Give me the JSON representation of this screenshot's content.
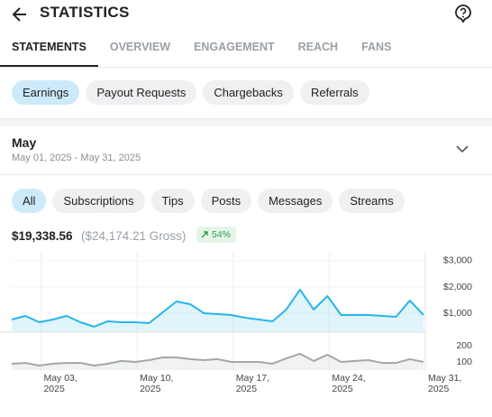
{
  "header": {
    "title": "STATISTICS"
  },
  "tabs": [
    "STATEMENTS",
    "OVERVIEW",
    "ENGAGEMENT",
    "REACH",
    "FANS"
  ],
  "active_tab": 0,
  "filters": [
    "Earnings",
    "Payout Requests",
    "Chargebacks",
    "Referrals"
  ],
  "active_filter": 0,
  "period": {
    "name": "May",
    "range": "May 01, 2025 - May 31, 2025"
  },
  "types": [
    "All",
    "Subscriptions",
    "Tips",
    "Posts",
    "Messages",
    "Streams"
  ],
  "active_type": 0,
  "summary": {
    "net": "$19,338.56",
    "gross": "($24,174.21 Gross)",
    "change": "54%"
  },
  "chart_data": [
    {
      "type": "area",
      "categories": [
        null,
        null,
        "May 03, 2025",
        null,
        null,
        null,
        null,
        null,
        null,
        "May 10, 2025",
        null,
        null,
        null,
        null,
        null,
        null,
        "May 17, 2025",
        null,
        null,
        null,
        null,
        null,
        null,
        "May 24, 2025",
        null,
        null,
        null,
        null,
        null,
        null,
        "May 31, 2025"
      ],
      "series": [
        {
          "color": "#27b5e6",
          "values": [
            759,
            897,
            655,
            759,
            897,
            655,
            483,
            690,
            655,
            655,
            621,
            1034,
            1448,
            1345,
            1000,
            966,
            931,
            828,
            759,
            690,
            1138,
            1897,
            1138,
            1655,
            931,
            931,
            931,
            897,
            862,
            1483,
            931
          ]
        }
      ],
      "ylim": [
        310,
        3240
      ],
      "yticks": [
        {
          "value": 1000,
          "label": "$1,000"
        },
        {
          "value": 2000,
          "label": "$2,000"
        },
        {
          "value": 3000,
          "label": "$3,000"
        }
      ],
      "grid": true
    },
    {
      "type": "area",
      "series": [
        {
          "color": "#a3a6aa",
          "values": [
            89,
            94,
            78,
            89,
            94,
            94,
            78,
            89,
            106,
            100,
            111,
            128,
            128,
            117,
            111,
            117,
            100,
            100,
            100,
            89,
            122,
            150,
            106,
            144,
            100,
            106,
            111,
            94,
            94,
            117,
            100
          ]
        }
      ],
      "ylim": [
        50,
        272
      ],
      "yticks": [
        100,
        200
      ],
      "grid": false
    }
  ]
}
